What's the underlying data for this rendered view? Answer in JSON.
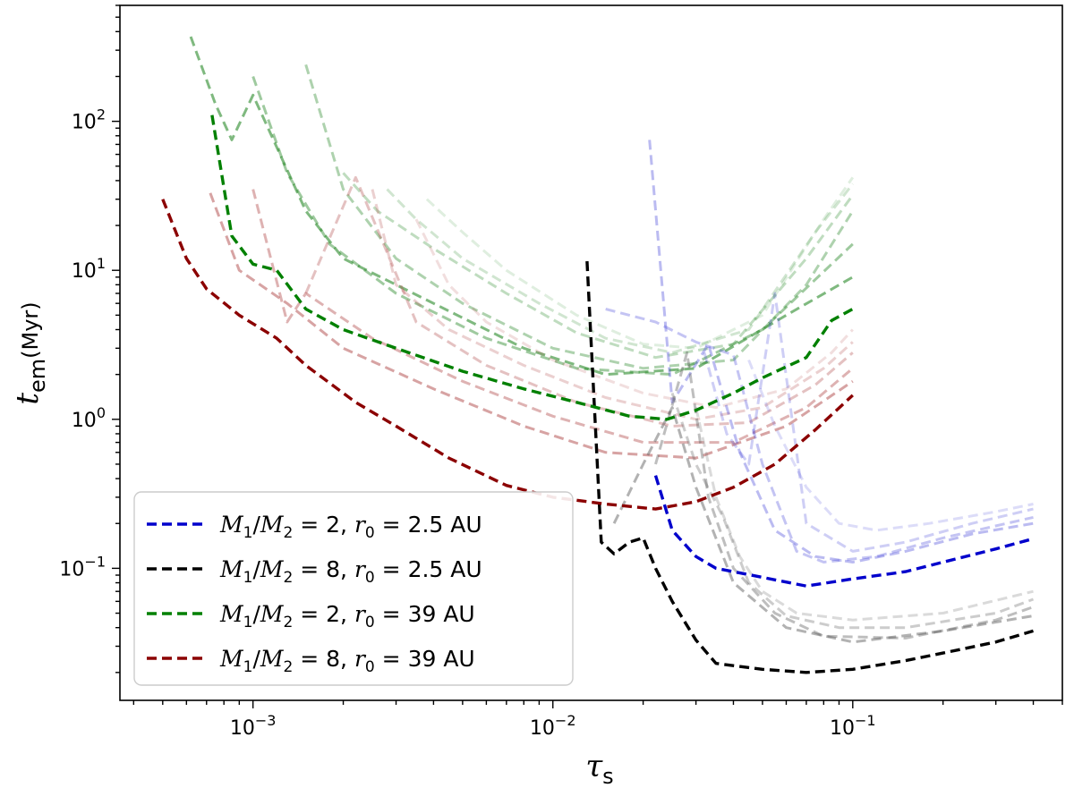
{
  "chart_data": {
    "type": "line",
    "xscale": "log",
    "yscale": "log",
    "xlim": [
      0.00036,
      0.5
    ],
    "ylim": [
      0.013,
      600
    ],
    "xlabel": "τ_s",
    "ylabel": "t_em(Myr)",
    "x_ticks": [
      {
        "value": 0.001,
        "base": "10",
        "exp": "−3"
      },
      {
        "value": 0.01,
        "base": "10",
        "exp": "−2"
      },
      {
        "value": 0.1,
        "base": "10",
        "exp": "−1"
      }
    ],
    "y_ticks": [
      {
        "value": 0.1,
        "base": "10",
        "exp": "−1"
      },
      {
        "value": 1,
        "base": "10",
        "exp": "0"
      },
      {
        "value": 10,
        "base": "10",
        "exp": "1"
      },
      {
        "value": 100,
        "base": "10",
        "exp": "2"
      }
    ],
    "legend": {
      "position": "bottom-left",
      "entries": [
        {
          "name": "M1/M2 = 2, r0 = 2.5 AU",
          "color": "#0000cc",
          "mass_ratio": "2",
          "r0": "2.5 AU"
        },
        {
          "name": "M1/M2 = 8, r0 = 2.5 AU",
          "color": "#000000",
          "mass_ratio": "8",
          "r0": "2.5 AU"
        },
        {
          "name": "M1/M2 = 2, r0 = 39 AU",
          "color": "#008000",
          "mass_ratio": "2",
          "r0": "39 AU"
        },
        {
          "name": "M1/M2 = 8, r0 = 39 AU",
          "color": "#8b0000",
          "mass_ratio": "8",
          "r0": "39 AU"
        }
      ]
    },
    "series": [
      {
        "name": "M1/M2 = 2, r0 = 2.5 AU",
        "color": "#0000cc",
        "x": [
          0.022,
          0.025,
          0.03,
          0.035,
          0.04,
          0.05,
          0.07,
          0.1,
          0.15,
          0.2,
          0.3,
          0.4
        ],
        "y": [
          0.42,
          0.18,
          0.12,
          0.1,
          0.095,
          0.087,
          0.076,
          0.085,
          0.095,
          0.11,
          0.135,
          0.158
        ]
      },
      {
        "name": "M1/M2 = 8, r0 = 2.5 AU",
        "color": "#000000",
        "x": [
          0.013,
          0.0145,
          0.016,
          0.018,
          0.02,
          0.022,
          0.025,
          0.03,
          0.035,
          0.05,
          0.07,
          0.1,
          0.15,
          0.2,
          0.3,
          0.4
        ],
        "y": [
          11.5,
          0.15,
          0.125,
          0.15,
          0.16,
          0.1,
          0.06,
          0.033,
          0.023,
          0.021,
          0.02,
          0.021,
          0.024,
          0.027,
          0.032,
          0.038
        ]
      },
      {
        "name": "M1/M2 = 2, r0 = 39 AU",
        "color": "#008000",
        "x": [
          0.00073,
          0.00085,
          0.001,
          0.0012,
          0.0015,
          0.002,
          0.003,
          0.005,
          0.008,
          0.012,
          0.018,
          0.024,
          0.03,
          0.04,
          0.05,
          0.07,
          0.085,
          0.1
        ],
        "y": [
          110,
          17,
          11,
          10,
          5.5,
          4,
          3,
          2.1,
          1.6,
          1.3,
          1.05,
          1.0,
          1.15,
          1.5,
          1.9,
          2.6,
          4.6,
          5.5
        ]
      },
      {
        "name": "M1/M2 = 8, r0 = 39 AU",
        "color": "#8b0000",
        "x": [
          0.0005,
          0.0006,
          0.0007,
          0.0009,
          0.0012,
          0.0015,
          0.0022,
          0.003,
          0.0045,
          0.007,
          0.01,
          0.015,
          0.022,
          0.03,
          0.04,
          0.055,
          0.075,
          0.1
        ],
        "y": [
          30,
          12,
          7.5,
          5,
          3.5,
          2.3,
          1.3,
          0.9,
          0.55,
          0.36,
          0.3,
          0.27,
          0.25,
          0.28,
          0.35,
          0.5,
          0.85,
          1.45
        ]
      }
    ],
    "faint_series": [
      {
        "color": "#2a8a2a",
        "opacity": 0.6,
        "x": [
          0.00062,
          0.00075,
          0.00085,
          0.001,
          0.0015,
          0.002,
          0.004,
          0.008,
          0.015,
          0.03,
          0.06,
          0.1
        ],
        "y": [
          370,
          130,
          75,
          150,
          25,
          12,
          6,
          3,
          2,
          2.2,
          5,
          9
        ]
      },
      {
        "color": "#2a8a2a",
        "opacity": 0.45,
        "x": [
          0.001,
          0.0013,
          0.0018,
          0.003,
          0.006,
          0.012,
          0.025,
          0.05,
          0.1
        ],
        "y": [
          200,
          45,
          15,
          7,
          3.5,
          2.2,
          2.0,
          4,
          15
        ]
      },
      {
        "color": "#2a8a2a",
        "opacity": 0.38,
        "x": [
          0.0015,
          0.002,
          0.003,
          0.005,
          0.01,
          0.02,
          0.04,
          0.07,
          0.1
        ],
        "y": [
          240,
          35,
          12,
          6,
          3,
          2.2,
          2.5,
          8,
          25
        ]
      },
      {
        "color": "#2a8a2a",
        "opacity": 0.3,
        "x": [
          0.002,
          0.0026,
          0.004,
          0.007,
          0.012,
          0.022,
          0.04,
          0.07,
          0.1
        ],
        "y": [
          45,
          25,
          14,
          7,
          3.8,
          2.6,
          3.2,
          12,
          32
        ]
      },
      {
        "color": "#2a8a2a",
        "opacity": 0.22,
        "x": [
          0.0028,
          0.0035,
          0.005,
          0.009,
          0.015,
          0.025,
          0.045,
          0.075,
          0.1
        ],
        "y": [
          35,
          22,
          12,
          6,
          3.5,
          2.8,
          4,
          18,
          38
        ]
      },
      {
        "color": "#2a8a2a",
        "opacity": 0.15,
        "x": [
          0.0038,
          0.005,
          0.007,
          0.012,
          0.02,
          0.03,
          0.05,
          0.08,
          0.1
        ],
        "y": [
          30,
          18,
          10,
          5,
          3.2,
          3,
          5,
          22,
          42
        ]
      },
      {
        "color": "#b04848",
        "opacity": 0.5,
        "x": [
          0.00072,
          0.0009,
          0.0013,
          0.002,
          0.004,
          0.008,
          0.015,
          0.03,
          0.06,
          0.1
        ],
        "y": [
          33,
          10,
          6,
          3,
          1.6,
          0.9,
          0.6,
          0.55,
          0.9,
          1.8
        ]
      },
      {
        "color": "#b04848",
        "opacity": 0.42,
        "x": [
          0.001,
          0.0013,
          0.0015,
          0.0025,
          0.005,
          0.01,
          0.02,
          0.04,
          0.07,
          0.1
        ],
        "y": [
          35,
          4.5,
          7,
          3.5,
          1.8,
          1.05,
          0.7,
          0.7,
          1.2,
          2.2
        ]
      },
      {
        "color": "#b04848",
        "opacity": 0.34,
        "x": [
          0.0015,
          0.0022,
          0.0035,
          0.006,
          0.012,
          0.025,
          0.045,
          0.075,
          0.1
        ],
        "y": [
          7,
          42,
          4.5,
          2.3,
          1.3,
          0.9,
          0.95,
          1.7,
          2.8
        ]
      },
      {
        "color": "#b04848",
        "opacity": 0.26,
        "x": [
          0.0025,
          0.003,
          0.0045,
          0.008,
          0.015,
          0.03,
          0.05,
          0.08,
          0.1
        ],
        "y": [
          35,
          8,
          4,
          2.3,
          1.4,
          1.0,
          1.2,
          2.2,
          3.3
        ]
      },
      {
        "color": "#b04848",
        "opacity": 0.18,
        "x": [
          0.0035,
          0.0045,
          0.006,
          0.01,
          0.02,
          0.035,
          0.06,
          0.085,
          0.1
        ],
        "y": [
          22,
          8,
          4.5,
          2.5,
          1.5,
          1.2,
          1.6,
          2.8,
          4
        ]
      },
      {
        "color": "#3b3bd8",
        "opacity": 0.35,
        "x": [
          0.021,
          0.025,
          0.033,
          0.042,
          0.055,
          0.075,
          0.1,
          0.15,
          0.25,
          0.4
        ],
        "y": [
          75,
          1.3,
          3.2,
          0.6,
          0.18,
          0.12,
          0.11,
          0.13,
          0.17,
          0.2
        ]
      },
      {
        "color": "#3b3bd8",
        "opacity": 0.3,
        "x": [
          0.015,
          0.022,
          0.03,
          0.04,
          0.05,
          0.065,
          0.08,
          0.12,
          0.2,
          0.4
        ],
        "y": [
          5.5,
          4.5,
          3.3,
          2.7,
          0.5,
          0.13,
          0.11,
          0.12,
          0.16,
          0.22
        ]
      },
      {
        "color": "#3b3bd8",
        "opacity": 0.25,
        "x": [
          0.032,
          0.038,
          0.045,
          0.055,
          0.07,
          0.1,
          0.15,
          0.25,
          0.4
        ],
        "y": [
          2.8,
          0.8,
          0.5,
          7,
          0.2,
          0.13,
          0.15,
          0.2,
          0.25
        ]
      },
      {
        "color": "#3b3bd8",
        "opacity": 0.18,
        "x": [
          0.045,
          0.055,
          0.07,
          0.09,
          0.12,
          0.18,
          0.3,
          0.4
        ],
        "y": [
          2.5,
          0.9,
          0.35,
          0.2,
          0.18,
          0.2,
          0.24,
          0.27
        ]
      },
      {
        "color": "#555555",
        "opacity": 0.45,
        "x": [
          0.016,
          0.02,
          0.025,
          0.03,
          0.04,
          0.06,
          0.1,
          0.2,
          0.4
        ],
        "y": [
          0.2,
          0.5,
          1.2,
          0.35,
          0.08,
          0.04,
          0.032,
          0.038,
          0.048
        ]
      },
      {
        "color": "#555555",
        "opacity": 0.38,
        "x": [
          0.022,
          0.028,
          0.033,
          0.04,
          0.055,
          0.08,
          0.15,
          0.3,
          0.4
        ],
        "y": [
          0.5,
          2.8,
          0.3,
          0.1,
          0.05,
          0.035,
          0.034,
          0.045,
          0.055
        ]
      },
      {
        "color": "#555555",
        "opacity": 0.3,
        "x": [
          0.025,
          0.03,
          0.037,
          0.045,
          0.06,
          0.09,
          0.15,
          0.3,
          0.4
        ],
        "y": [
          1.5,
          0.5,
          0.22,
          0.08,
          0.048,
          0.04,
          0.04,
          0.05,
          0.062
        ]
      },
      {
        "color": "#555555",
        "opacity": 0.22,
        "x": [
          0.03,
          0.035,
          0.042,
          0.05,
          0.065,
          0.1,
          0.2,
          0.4
        ],
        "y": [
          1.2,
          0.3,
          0.12,
          0.07,
          0.05,
          0.045,
          0.05,
          0.07
        ]
      }
    ]
  }
}
